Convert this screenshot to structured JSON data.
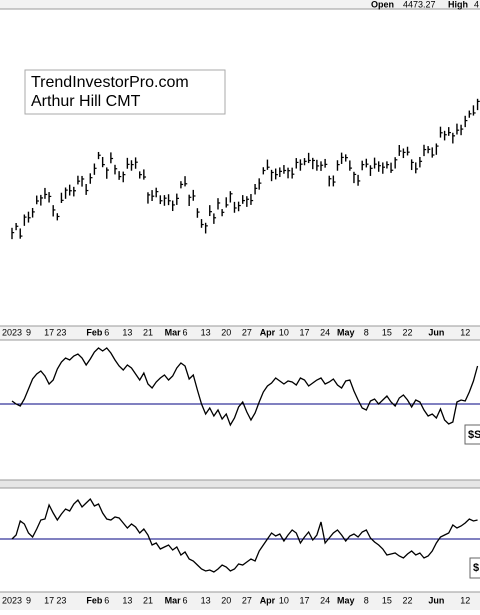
{
  "header": {
    "open_label": "Open",
    "open_value": "4473.27",
    "high_label": "High",
    "high_value": "4"
  },
  "chart_data": [
    {
      "type": "ohlc",
      "annotations": [
        "TrendInvestorPro.com",
        "Arthur Hill CMT"
      ],
      "color": "#000000",
      "ylim": [
        3400,
        4850
      ],
      "categories": [
        "2023",
        null,
        null,
        null,
        "9",
        null,
        null,
        null,
        null,
        "17",
        null,
        null,
        "23",
        null,
        null,
        null,
        null,
        null,
        null,
        null,
        "Feb",
        null,
        null,
        "6",
        null,
        null,
        null,
        null,
        "13",
        null,
        null,
        null,
        null,
        "21",
        null,
        null,
        null,
        null,
        null,
        "Mar",
        null,
        null,
        "6",
        null,
        null,
        null,
        null,
        "13",
        null,
        null,
        null,
        null,
        "20",
        null,
        null,
        null,
        null,
        "27",
        null,
        null,
        null,
        null,
        "Apr",
        null,
        null,
        null,
        "10",
        null,
        null,
        null,
        null,
        "17",
        null,
        null,
        null,
        null,
        "24",
        null,
        null,
        null,
        null,
        "May",
        null,
        null,
        null,
        null,
        "8",
        null,
        null,
        null,
        null,
        "15",
        null,
        null,
        null,
        null,
        "22",
        null,
        null,
        null,
        null,
        null,
        null,
        "Jun",
        null,
        null,
        null,
        null,
        null,
        null,
        "12",
        null,
        null,
        null
      ],
      "high": [
        3846,
        3868,
        3843,
        3907,
        3920,
        3937,
        3994,
        3997,
        4029,
        4010,
        3950,
        3913,
        4007,
        4031,
        4044,
        4034,
        4085,
        4084,
        4047,
        4096,
        4141,
        4194,
        4171,
        4123,
        4192,
        4135,
        4106,
        4104,
        4167,
        4156,
        4169,
        4105,
        4114,
        4009,
        4019,
        4030,
        3995,
        3996,
        4000,
        3971,
        4003,
        4060,
        4083,
        3998,
        4020,
        3936,
        3886,
        3869,
        3950,
        3912,
        3982,
        3932,
        3986,
        4014,
        3965,
        3966,
        3996,
        3991,
        4001,
        4047,
        4073,
        4124,
        4159,
        4112,
        4118,
        4123,
        4134,
        4122,
        4122,
        4166,
        4160,
        4166,
        4190,
        4167,
        4158,
        4151,
        4162,
        4085,
        4086,
        4156,
        4191,
        4183,
        4155,
        4103,
        4089,
        4154,
        4163,
        4133,
        4168,
        4151,
        4146,
        4151,
        4145,
        4170,
        4226,
        4210,
        4218,
        4160,
        4146,
        4171,
        4227,
        4221,
        4215,
        4233,
        4310,
        4291,
        4308,
        4282,
        4324,
        4319,
        4360,
        4384,
        4408,
        4438
      ],
      "low": [
        3794,
        3835,
        3796,
        3855,
        3870,
        3893,
        3954,
        3948,
        3979,
        3962,
        3898,
        3880,
        3960,
        3979,
        3994,
        3990,
        4045,
        4035,
        3997,
        4048,
        4089,
        4161,
        4124,
        4071,
        4142,
        4091,
        4066,
        4055,
        4117,
        4108,
        4117,
        4072,
        4067,
        3957,
        3969,
        3986,
        3955,
        3947,
        3950,
        3923,
        3951,
        4027,
        4036,
        3946,
        3970,
        3892,
        3846,
        3820,
        3900,
        3864,
        3930,
        3899,
        3939,
        3962,
        3915,
        3922,
        3956,
        3942,
        3951,
        3999,
        4021,
        4091,
        4112,
        4060,
        4068,
        4079,
        4094,
        4073,
        4072,
        4118,
        4108,
        4133,
        4143,
        4115,
        4108,
        4107,
        4122,
        4036,
        4036,
        4108,
        4139,
        4150,
        4108,
        4051,
        4039,
        4110,
        4123,
        4084,
        4118,
        4103,
        4094,
        4118,
        4098,
        4118,
        4176,
        4166,
        4178,
        4111,
        4096,
        4123,
        4175,
        4188,
        4168,
        4181,
        4260,
        4247,
        4268,
        4233,
        4274,
        4271,
        4308,
        4351,
        4361,
        4386
      ],
      "close": [
        3824,
        3853,
        3808,
        3895,
        3892,
        3919,
        3969,
        3983,
        3999,
        3990,
        3928,
        3898,
        3972,
        4019,
        4016,
        4016,
        4060,
        4070,
        4017,
        4076,
        4119,
        4179,
        4136,
        4111,
        4164,
        4117,
        4081,
        4090,
        4137,
        4136,
        4147,
        4090,
        4079,
        3997,
        3991,
        4012,
        3970,
        3982,
        3970,
        3951,
        3981,
        4045,
        4048,
        3986,
        3992,
        3918,
        3861,
        3855,
        3920,
        3892,
        3960,
        3917,
        3951,
        4002,
        3937,
        3948,
        3971,
        3977,
        3971,
        4027,
        4051,
        4109,
        4124,
        4100,
        4090,
        4105,
        4109,
        4108,
        4092,
        4146,
        4138,
        4151,
        4155,
        4155,
        4130,
        4133,
        4137,
        4071,
        4056,
        4136,
        4169,
        4168,
        4120,
        4091,
        4061,
        4136,
        4138,
        4119,
        4138,
        4131,
        4124,
        4136,
        4110,
        4158,
        4198,
        4192,
        4193,
        4146,
        4116,
        4151,
        4205,
        4206,
        4180,
        4221,
        4282,
        4273,
        4283,
        4268,
        4294,
        4299,
        4338,
        4369,
        4373,
        4426
      ]
    },
    {
      "type": "line",
      "label": "$S",
      "color": "#000000",
      "hline": 0,
      "hline_color": "#000080",
      "ylim": [
        -7,
        6
      ],
      "values": [
        0.3,
        0.0,
        -0.2,
        0.5,
        1.5,
        2.5,
        3.0,
        3.3,
        2.8,
        2.0,
        2.4,
        3.5,
        4.2,
        4.6,
        4.4,
        4.8,
        5.0,
        4.6,
        3.9,
        4.5,
        5.2,
        5.6,
        5.3,
        5.6,
        5.1,
        4.4,
        3.8,
        3.4,
        3.9,
        3.6,
        3.0,
        2.4,
        3.1,
        2.0,
        1.6,
        2.2,
        2.6,
        2.9,
        2.4,
        2.8,
        3.6,
        4.1,
        3.8,
        2.5,
        2.9,
        1.4,
        0.0,
        -1.0,
        -0.4,
        -1.2,
        -0.6,
        -1.5,
        -1.0,
        -2.1,
        -1.4,
        -0.3,
        0.2,
        -0.8,
        -1.6,
        -0.9,
        0.2,
        1.2,
        1.8,
        2.1,
        2.6,
        2.3,
        2.0,
        2.3,
        2.2,
        1.9,
        2.6,
        2.4,
        1.8,
        2.1,
        2.4,
        2.6,
        2.0,
        2.2,
        2.5,
        1.9,
        1.6,
        2.3,
        2.4,
        1.3,
        0.4,
        -0.4,
        -0.6,
        0.3,
        0.5,
        0.0,
        0.4,
        0.8,
        0.2,
        -0.2,
        0.6,
        0.9,
        0.4,
        -0.3,
        0.4,
        0.2,
        -0.6,
        -1.2,
        -1.0,
        -1.4,
        -0.5,
        -1.6,
        -2.0,
        -1.8,
        0.2,
        0.4,
        0.3,
        1.2,
        2.3,
        3.8
      ]
    },
    {
      "type": "line",
      "label": "$",
      "color": "#000000",
      "hline": 0,
      "hline_color": "#000080",
      "ylim": [
        -5,
        5
      ],
      "categories": [
        "2023",
        null,
        null,
        null,
        "9",
        null,
        null,
        null,
        null,
        "17",
        null,
        null,
        "23",
        null,
        null,
        null,
        null,
        null,
        null,
        null,
        "Feb",
        null,
        null,
        "6",
        null,
        null,
        null,
        null,
        "13",
        null,
        null,
        null,
        null,
        "21",
        null,
        null,
        null,
        null,
        null,
        "Mar",
        null,
        null,
        "6",
        null,
        null,
        null,
        null,
        "13",
        null,
        null,
        null,
        null,
        "20",
        null,
        null,
        null,
        null,
        "27",
        null,
        null,
        null,
        null,
        "Apr",
        null,
        null,
        null,
        "10",
        null,
        null,
        null,
        null,
        "17",
        null,
        null,
        null,
        null,
        "24",
        null,
        null,
        null,
        null,
        "May",
        null,
        null,
        null,
        null,
        "8",
        null,
        null,
        null,
        null,
        "15",
        null,
        null,
        null,
        null,
        "22",
        null,
        null,
        null,
        null,
        null,
        null,
        "Jun",
        null,
        null,
        null,
        null,
        null,
        null,
        "12",
        null,
        null,
        null
      ],
      "values": [
        0.0,
        0.4,
        1.8,
        1.5,
        0.6,
        0.2,
        1.0,
        1.9,
        2.0,
        3.4,
        2.6,
        1.9,
        2.5,
        3.0,
        2.8,
        3.5,
        3.9,
        3.2,
        3.6,
        4.0,
        3.3,
        3.5,
        2.6,
        2.0,
        1.9,
        2.2,
        2.1,
        1.6,
        1.1,
        1.5,
        1.2,
        0.6,
        1.0,
        0.4,
        -0.6,
        -0.4,
        -1.0,
        -0.8,
        -0.6,
        -1.1,
        -0.8,
        -1.6,
        -1.3,
        -2.0,
        -2.2,
        -2.6,
        -3.0,
        -3.2,
        -3.1,
        -3.3,
        -3.0,
        -2.6,
        -2.8,
        -3.2,
        -3.0,
        -2.5,
        -2.6,
        -2.3,
        -2.0,
        -2.2,
        -1.2,
        -0.6,
        0.0,
        0.6,
        0.3,
        0.5,
        -0.2,
        0.4,
        0.9,
        0.6,
        -0.4,
        0.2,
        0.7,
        -0.1,
        0.4,
        1.7,
        -0.4,
        0.1,
        0.6,
        0.9,
        0.4,
        -0.2,
        0.3,
        0.5,
        0.2,
        0.7,
        0.9,
        0.1,
        -0.3,
        -0.6,
        -1.0,
        -1.6,
        -1.5,
        -1.4,
        -1.7,
        -1.9,
        -1.5,
        -1.2,
        -1.6,
        -1.4,
        -1.9,
        -1.7,
        -1.2,
        -0.4,
        0.2,
        0.4,
        0.6,
        1.4,
        1.1,
        1.3,
        1.6,
        2.0,
        1.8,
        1.9
      ]
    }
  ]
}
